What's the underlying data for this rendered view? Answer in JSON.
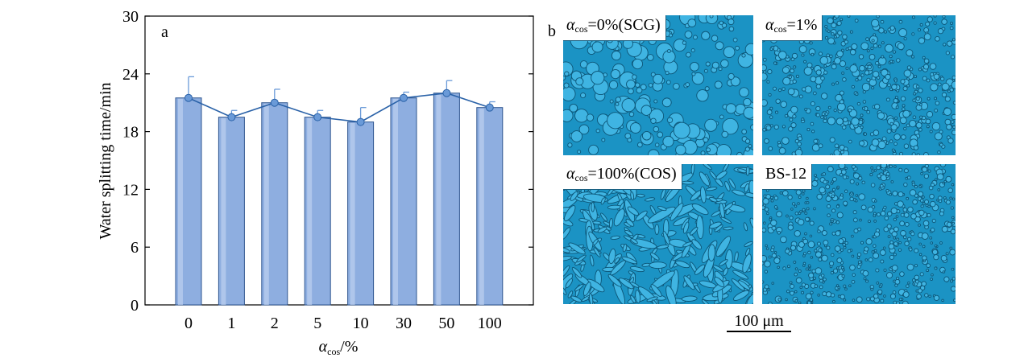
{
  "chart_data": {
    "type": "bar",
    "panel_letter": "a",
    "categories": [
      "0",
      "1",
      "2",
      "5",
      "10",
      "30",
      "50",
      "100"
    ],
    "values": [
      21.5,
      19.5,
      21.0,
      19.5,
      19.0,
      21.5,
      22.0,
      20.5
    ],
    "errors": [
      2.2,
      0.7,
      1.4,
      0.7,
      1.5,
      0.6,
      1.3,
      0.6
    ],
    "overlay_line": true,
    "ylabel": "Water splitting time/min",
    "xlabel_symbol": "α",
    "xlabel_sub": "cos",
    "xlabel_unit": "/%",
    "ylim": [
      0,
      30
    ],
    "yticks": [
      "0",
      "6",
      "12",
      "18",
      "24",
      "30"
    ],
    "grid": false,
    "colors": {
      "bar": "#8eaee0",
      "bar_edge": "#2f5690",
      "line": "#2a62a8",
      "marker": "#6a9ad8"
    }
  },
  "micrographs": {
    "panel_letter": "b",
    "panels": [
      {
        "symbol": "α",
        "sub": "cos",
        "text": "=0%(SCG)"
      },
      {
        "symbol": "α",
        "sub": "cos",
        "text": "=1%"
      },
      {
        "symbol": "α",
        "sub": "cos",
        "text": "=100%(COS)"
      },
      {
        "symbol": "",
        "sub": "",
        "text": "BS-12"
      }
    ],
    "scale_bar": "100 μm",
    "colors": {
      "background": "#1b93c4",
      "droplet": "#3fb4e2",
      "edge": "#0c5577"
    }
  }
}
